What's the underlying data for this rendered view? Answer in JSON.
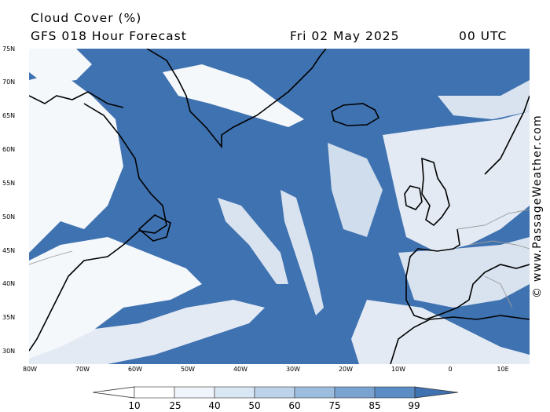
{
  "header": {
    "title": "Cloud Cover (%)",
    "model": "GFS 018 Hour Forecast",
    "date": "Fri 02 May 2025",
    "hour": "00 UTC"
  },
  "axes": {
    "lat_labels": [
      "75N",
      "70N",
      "65N",
      "60N",
      "55N",
      "50N",
      "45N",
      "40N",
      "35N",
      "30N"
    ],
    "lon_labels": [
      "80W",
      "70W",
      "60W",
      "50W",
      "40W",
      "30W",
      "20W",
      "10W",
      "0",
      "10E"
    ]
  },
  "legend": {
    "ticks": [
      "10",
      "25",
      "40",
      "50",
      "60",
      "75",
      "85",
      "99"
    ],
    "colors": [
      "#ffffff",
      "#f0f5fb",
      "#d9e6f3",
      "#bdd3ea",
      "#9dbddf",
      "#7ba3d1",
      "#5b8dc4",
      "#3f72b0"
    ]
  },
  "credit": "© www.PassageWeather.com",
  "colors": {
    "ocean_overcast": "#3f72b0",
    "coast": "#000000",
    "border": "#9a9a9a"
  }
}
